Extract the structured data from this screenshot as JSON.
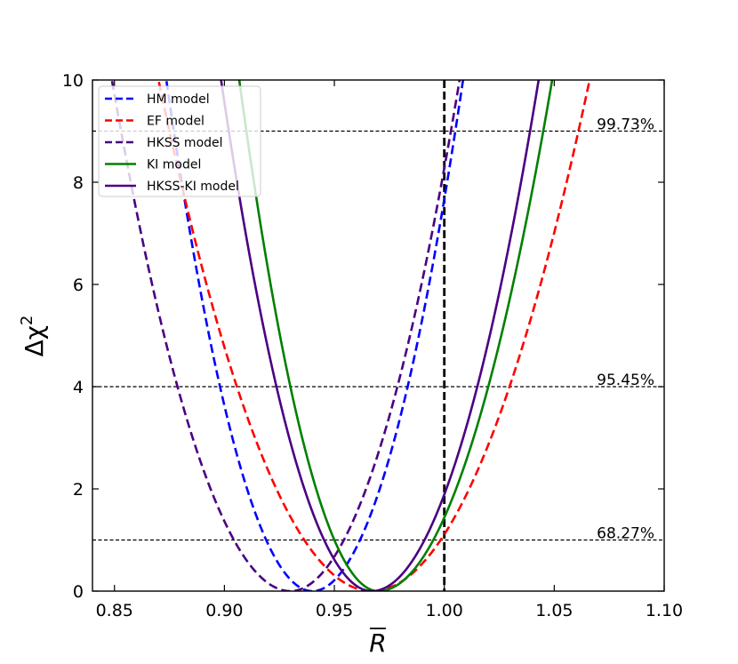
{
  "chart_data": {
    "type": "line",
    "title": "",
    "xlabel": "R",
    "xlabel_overline": true,
    "ylabel_main": "Δχ",
    "ylabel_sup": "2",
    "xlim": [
      0.84,
      1.1
    ],
    "ylim": [
      0,
      10
    ],
    "xticks": [
      0.85,
      0.9,
      0.95,
      1.0,
      1.05,
      1.1
    ],
    "xtick_labels": [
      "0.85",
      "0.90",
      "0.95",
      "1.00",
      "1.05",
      "1.10"
    ],
    "yticks": [
      0,
      2,
      4,
      6,
      8,
      10
    ],
    "ytick_labels": [
      "0",
      "2",
      "4",
      "6",
      "8",
      "10"
    ],
    "vertical_reference": {
      "x": 1.0,
      "color": "#000000",
      "dashed": true
    },
    "confidence_levels": [
      {
        "y": 1.0,
        "label": "68.27%"
      },
      {
        "y": 4.0,
        "label": "95.45%"
      },
      {
        "y": 9.0,
        "label": "99.73%"
      }
    ],
    "legend_position": "top-left",
    "series": [
      {
        "name": "HM model",
        "color": "#0000ff",
        "dashed": true,
        "min_x": 0.94,
        "left_x_at_9": 0.877,
        "right_x_at_9": 1.005
      },
      {
        "name": "EF model",
        "color": "#ff0000",
        "dashed": true,
        "min_x": 0.967,
        "left_x_at_9": 0.875,
        "right_x_at_9": 1.061
      },
      {
        "name": "HKSS model",
        "color": "#4b0082",
        "dashed": true,
        "min_x": 0.93,
        "left_x_at_9": 0.853,
        "right_x_at_9": 1.003
      },
      {
        "name": "KI model",
        "color": "#008000",
        "dashed": false,
        "min_x": 0.97,
        "left_x_at_9": 0.91,
        "right_x_at_9": 1.045
      },
      {
        "name": "HKSS-KI model",
        "color": "#4b0082",
        "dashed": false,
        "min_x": 0.967,
        "left_x_at_9": 0.902,
        "right_x_at_9": 1.039
      }
    ]
  }
}
